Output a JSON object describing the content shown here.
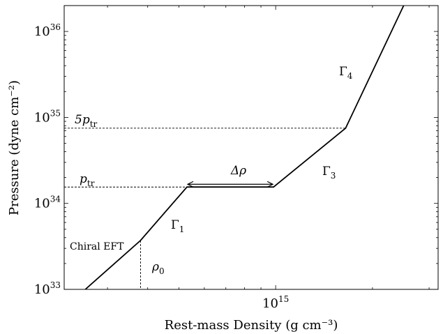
{
  "chart_data": {
    "type": "line",
    "xlabel": "Rest-mass Density (g cm⁻³)",
    "ylabel": "Pressure (dyne cm⁻²)",
    "xscale": "log",
    "yscale": "log",
    "xlim": [
      220000000000000.0,
      3200000000000000.0
    ],
    "ylim": [
      1e+33,
      2e+36
    ],
    "x_ticks": [
      {
        "base": "10",
        "exp": "15",
        "value": 1000000000000000.0
      }
    ],
    "y_ticks": [
      {
        "base": "10",
        "exp": "33",
        "value": 1e+33
      },
      {
        "base": "10",
        "exp": "34",
        "value": 1e+34
      },
      {
        "base": "10",
        "exp": "35",
        "value": 1e+35
      },
      {
        "base": "10",
        "exp": "36",
        "value": 1e+36
      }
    ],
    "grid": false,
    "legend": "none",
    "series": [
      {
        "x": [
          256000000000000.0,
          380000000000000.0,
          530000000000000.0,
          985000000000000.0,
          1650000000000000.0,
          2500000000000000.0
        ],
        "y": [
          1e+33,
          3.7e+33,
          1.55e+34,
          1.55e+34,
          7.5e+34,
          2e+36
        ]
      }
    ],
    "reference_lines": {
      "p_tr": 1.55e+34,
      "five_p_tr": 7.5e+34,
      "rho_0": 380000000000000.0
    },
    "annotations": {
      "chiral": "Chiral EFT",
      "rho0": "ρ",
      "rho0_sub": "0",
      "ptr": "p",
      "ptr_sub": "tr",
      "five_ptr": "5p",
      "five_ptr_sub": "tr",
      "gamma1": "Γ",
      "gamma1_sub": "1",
      "gamma3": "Γ",
      "gamma3_sub": "3",
      "gamma4": "Γ",
      "gamma4_sub": "4",
      "delta_rho": "Δρ"
    }
  }
}
